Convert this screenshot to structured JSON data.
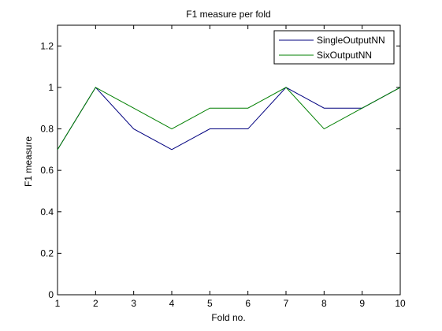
{
  "chart_data": {
    "type": "line",
    "title": "F1 measure per fold",
    "xlabel": "Fold no.",
    "ylabel": "F1 measure",
    "xlim": [
      1,
      10
    ],
    "ylim": [
      0,
      1.3
    ],
    "x": [
      1,
      2,
      3,
      4,
      5,
      6,
      7,
      8,
      9,
      10
    ],
    "xticks": [
      "1",
      "2",
      "3",
      "4",
      "5",
      "6",
      "7",
      "8",
      "9",
      "10"
    ],
    "yticks": [
      "0",
      "0.2",
      "0.4",
      "0.6",
      "0.8",
      "1",
      "1.2"
    ],
    "grid": false,
    "legend_position": "top-right",
    "series": [
      {
        "name": "SingleOutputNN",
        "color": "#00007f",
        "values": [
          0.7,
          1.0,
          0.8,
          0.7,
          0.8,
          0.8,
          1.0,
          0.9,
          0.9,
          1.0
        ]
      },
      {
        "name": "SixOutputNN",
        "color": "#007f00",
        "values": [
          0.7,
          1.0,
          0.9,
          0.8,
          0.9,
          0.9,
          1.0,
          0.8,
          0.9,
          1.0
        ]
      }
    ]
  }
}
